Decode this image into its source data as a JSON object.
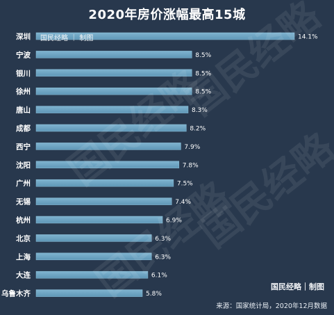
{
  "chart_data": {
    "type": "bar",
    "orientation": "horizontal",
    "title": "2020年房价涨幅最高15城",
    "categories": [
      "深圳",
      "宁波",
      "银川",
      "徐州",
      "唐山",
      "成都",
      "西宁",
      "沈阳",
      "广州",
      "无锡",
      "杭州",
      "北京",
      "上海",
      "大连",
      "乌鲁木齐"
    ],
    "values": [
      14.1,
      8.5,
      8.5,
      8.5,
      8.3,
      8.2,
      7.9,
      7.8,
      7.5,
      7.4,
      6.9,
      6.3,
      6.3,
      6.1,
      5.8
    ],
    "value_labels": [
      "14.1%",
      "8.5%",
      "8.5%",
      "8.5%",
      "8.3%",
      "8.2%",
      "7.9%",
      "7.8%",
      "7.5%",
      "7.4%",
      "6.9%",
      "6.3%",
      "6.3%",
      "6.1%",
      "5.8%"
    ],
    "xlabel": "",
    "ylabel": "",
    "xlim": [
      0,
      14.1
    ],
    "grid": false,
    "colors": {
      "background": "#28384d",
      "bar": "#5f97b7",
      "bar_highlight": "#7fb3cf",
      "text": "#ffffff"
    }
  },
  "source": "来源：国家统计局，2020年12月数据",
  "brand": "国民经略｜制图",
  "bar_brand": "国民经略 ｜ 制图",
  "watermark": "国民经略"
}
